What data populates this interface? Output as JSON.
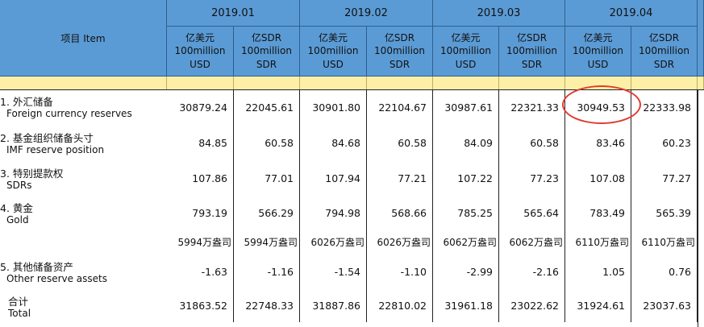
{
  "header": {
    "item_label": "项目 Item",
    "months": [
      "2019.01",
      "2019.02",
      "2019.03",
      "2019.04"
    ],
    "unit_usd": [
      "亿美元",
      "100million",
      "USD"
    ],
    "unit_sdr": [
      "亿SDR",
      "100million",
      "SDR"
    ]
  },
  "rows": [
    {
      "cn": "1. 外汇储备",
      "en": "Foreign currency reserves",
      "values": [
        "30879.24",
        "22045.61",
        "30901.80",
        "22104.67",
        "30987.61",
        "22321.33",
        "30949.53",
        "22333.98"
      ]
    },
    {
      "cn": "2. 基金组织储备头寸",
      "en": "IMF reserve position",
      "values": [
        "84.85",
        "60.58",
        "84.68",
        "60.58",
        "84.09",
        "60.58",
        "83.46",
        "60.23"
      ]
    },
    {
      "cn": "3. 特别提款权",
      "en": "SDRs",
      "values": [
        "107.86",
        "77.01",
        "107.94",
        "77.21",
        "107.22",
        "77.23",
        "107.08",
        "77.27"
      ]
    },
    {
      "cn": "4. 黄金",
      "en": "Gold",
      "values": [
        "793.19",
        "566.29",
        "794.98",
        "568.66",
        "785.25",
        "565.64",
        "783.49",
        "565.39"
      ]
    },
    {
      "cn": "",
      "en": "",
      "values": [
        "5994万盎司",
        "5994万盎司",
        "6026万盎司",
        "6026万盎司",
        "6062万盎司",
        "6062万盎司",
        "6110万盎司",
        "6110万盎司"
      ]
    },
    {
      "cn": "5. 其他储备资产",
      "en": "Other reserve assets",
      "values": [
        "-1.63",
        "-1.16",
        "-1.54",
        "-1.10",
        "-2.99",
        "-2.16",
        "1.05",
        "0.76"
      ]
    },
    {
      "cn": "合计",
      "en": "Total",
      "values": [
        "31863.52",
        "22748.33",
        "31887.86",
        "22810.02",
        "31961.18",
        "23022.62",
        "31924.61",
        "23037.63"
      ]
    }
  ],
  "highlight": {
    "color": "#e03c31"
  },
  "colors": {
    "header_bg": "#5b9bd5",
    "spacer_bg": "#fdf0a6",
    "text": "#111111"
  }
}
